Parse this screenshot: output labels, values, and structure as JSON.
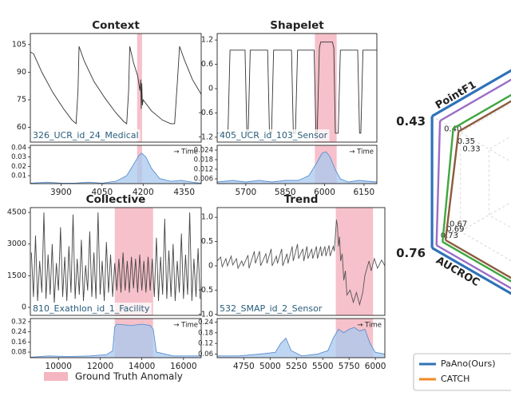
{
  "legend": {
    "label": "Ground Truth Anomaly",
    "color": "#f4b6c1"
  },
  "chart_data": [
    {
      "type": "line",
      "title": "Context",
      "annotation": "326_UCR_id_24_Medical",
      "color": "#333333",
      "x": [
        3788,
        3800,
        3830,
        3870,
        3910,
        3940,
        3955,
        3962,
        3966,
        3985,
        4020,
        4060,
        4100,
        4130,
        4140,
        4147,
        4151,
        4165,
        4180,
        4188,
        4191,
        4193,
        4195,
        4197,
        4200,
        4230,
        4270,
        4300,
        4315,
        4325,
        4333,
        4350,
        4380,
        4412
      ],
      "values": [
        101,
        100,
        90,
        79,
        70,
        64,
        62,
        80,
        104,
        96,
        85,
        76,
        68,
        63,
        62,
        80,
        104,
        95,
        88,
        80,
        86,
        70,
        84,
        72,
        75,
        69,
        64,
        62,
        62,
        85,
        104,
        97,
        86,
        78
      ],
      "xlim": [
        3788,
        4412
      ],
      "ylim": [
        52,
        111
      ],
      "yticks": [
        60,
        75,
        90,
        105
      ],
      "anomaly": [
        4178,
        4196
      ]
    },
    {
      "type": "area",
      "time_label": "→ Time",
      "color": "#a8c8ee",
      "line_color": "#5b8fd0",
      "x": [
        3788,
        3850,
        3900,
        3950,
        4000,
        4050,
        4100,
        4140,
        4165,
        4185,
        4195,
        4210,
        4230,
        4260,
        4300,
        4340,
        4380,
        4412
      ],
      "values": [
        0.002,
        0.003,
        0.002,
        0.002,
        0.003,
        0.002,
        0.004,
        0.01,
        0.022,
        0.032,
        0.034,
        0.03,
        0.018,
        0.007,
        0.004,
        0.005,
        0.003,
        0.002
      ],
      "xlim": [
        3788,
        4412
      ],
      "ylim": [
        0.0015,
        0.0425
      ],
      "yticks": [
        0.01,
        0.02,
        0.03,
        0.04
      ],
      "xticks": [
        3900,
        4050,
        4200,
        4350
      ],
      "anomaly": [
        4178,
        4196
      ]
    },
    {
      "type": "line",
      "title": "Shapelet",
      "annotation": "405_UCR_id_103_Sensor",
      "color": "#333333",
      "x": [
        5591,
        5632,
        5640,
        5697,
        5704,
        5709,
        5717,
        5783,
        5790,
        5798,
        5806,
        5874,
        5881,
        5889,
        5897,
        5960,
        5967,
        5972,
        5980,
        5985,
        6030,
        6035,
        6041,
        6052,
        6060,
        6126,
        6133,
        6138,
        6146,
        6199
      ],
      "values": [
        -1.1,
        -1.1,
        0.95,
        0.95,
        -1.1,
        -1.1,
        0.95,
        0.95,
        -1.1,
        -1.1,
        0.95,
        0.95,
        -1.1,
        -1.1,
        0.95,
        0.95,
        -1.1,
        -1.1,
        1.0,
        1.15,
        1.15,
        1.0,
        -1.1,
        -1.1,
        0.95,
        0.95,
        -1.1,
        -1.1,
        0.95,
        0.95
      ],
      "xlim": [
        5591,
        6199
      ],
      "ylim": [
        -1.32,
        1.36
      ],
      "yticks": [
        -1.2,
        -0.6,
        0,
        0.6,
        1.2
      ],
      "anomaly": [
        5963,
        6046
      ]
    },
    {
      "type": "area",
      "time_label": "→ Time",
      "color": "#a8c8ee",
      "line_color": "#5b8fd0",
      "x": [
        5591,
        5650,
        5700,
        5750,
        5800,
        5850,
        5900,
        5940,
        5970,
        5990,
        6005,
        6020,
        6040,
        6060,
        6090,
        6130,
        6199
      ],
      "values": [
        0.004,
        0.005,
        0.004,
        0.005,
        0.004,
        0.005,
        0.005,
        0.008,
        0.016,
        0.022,
        0.023,
        0.02,
        0.012,
        0.006,
        0.004,
        0.005,
        0.004
      ],
      "xlim": [
        5591,
        6199
      ],
      "ylim": [
        0.003,
        0.027
      ],
      "yticks": [
        0.006,
        0.012,
        0.018,
        0.024
      ],
      "xticks": [
        5700,
        5850,
        6000,
        6150
      ],
      "anomaly": [
        5963,
        6046
      ]
    },
    {
      "type": "line",
      "title": "Collective",
      "annotation": "810_Exathlon_id_1_Facility",
      "color": "#444444",
      "x": [
        8700,
        8800,
        8900,
        9000,
        9100,
        9200,
        9300,
        9400,
        9500,
        9600,
        9700,
        9800,
        9900,
        10000,
        10100,
        10200,
        10300,
        10400,
        10500,
        10600,
        10700,
        10800,
        10900,
        11000,
        11100,
        11200,
        11300,
        11400,
        11500,
        11600,
        11700,
        11800,
        11900,
        12000,
        12100,
        12200,
        12300,
        12400,
        12500,
        12600,
        12700,
        12800,
        12900,
        13000,
        13100,
        13200,
        13300,
        13400,
        13500,
        13600,
        13700,
        13800,
        13900,
        14000,
        14100,
        14200,
        14300,
        14400,
        14500,
        14600,
        14700,
        14800,
        14900,
        15000,
        15100,
        15200,
        15300,
        15400,
        15500,
        15600,
        15700,
        15800,
        15900,
        16000,
        16100,
        16200,
        16300,
        16400,
        16500,
        16600,
        16700,
        16800
      ],
      "values": [
        2600,
        500,
        3400,
        300,
        2200,
        700,
        4500,
        400,
        2500,
        600,
        3000,
        200,
        2100,
        800,
        3800,
        500,
        2400,
        300,
        2900,
        700,
        4400,
        400,
        2300,
        600,
        3200,
        300,
        2000,
        800,
        3600,
        500,
        2600,
        400,
        4500,
        600,
        2200,
        300,
        3100,
        700,
        2500,
        500,
        2100,
        800,
        2300,
        700,
        2600,
        800,
        2200,
        700,
        2400,
        900,
        2300,
        700,
        2500,
        800,
        2200,
        700,
        2400,
        800,
        2300,
        500,
        3300,
        300,
        2400,
        600,
        4200,
        400,
        2700,
        500,
        3000,
        300,
        2200,
        700,
        3500,
        400,
        2500,
        600,
        4500,
        300,
        2300,
        500,
        2800,
        400
      ],
      "xlim": [
        8650,
        16850
      ],
      "ylim": [
        -380,
        4730
      ],
      "yticks": [
        0,
        1500,
        3000,
        4500
      ],
      "anomaly": [
        12700,
        14540
      ]
    },
    {
      "type": "area",
      "time_label": "→ Time",
      "color": "#a8c8ee",
      "line_color": "#5b8fd0",
      "x": [
        8650,
        9500,
        10500,
        11500,
        12300,
        12600,
        12700,
        12800,
        13500,
        14000,
        14400,
        14550,
        14700,
        15500,
        16850
      ],
      "values": [
        0.04,
        0.05,
        0.045,
        0.05,
        0.06,
        0.09,
        0.28,
        0.3,
        0.29,
        0.3,
        0.29,
        0.26,
        0.08,
        0.05,
        0.05
      ],
      "xlim": [
        8650,
        16850
      ],
      "ylim": [
        0.036,
        0.345
      ],
      "yticks": [
        0.08,
        0.16,
        0.24,
        0.32
      ],
      "xticks": [
        10000,
        12000,
        14000,
        16000
      ],
      "anomaly": [
        12700,
        14540
      ]
    },
    {
      "type": "line",
      "title": "Trend",
      "annotation": "532_SMAP_id_2_Sensor",
      "color": "#555555",
      "x": [
        4497,
        4530,
        4545,
        4580,
        4595,
        4630,
        4645,
        4680,
        4695,
        4730,
        4745,
        4790,
        4800,
        4850,
        4860,
        4900,
        4910,
        4960,
        4970,
        5010,
        5020,
        5060,
        5070,
        5110,
        5120,
        5160,
        5170,
        5210,
        5220,
        5260,
        5270,
        5310,
        5320,
        5350,
        5360,
        5395,
        5405,
        5440,
        5450,
        5480,
        5490,
        5520,
        5530,
        5560,
        5570,
        5600,
        5610,
        5630,
        5640,
        5650,
        5660,
        5670,
        5685,
        5700,
        5715,
        5730,
        5760,
        5790,
        5820,
        5850,
        5880,
        5900,
        5940,
        5960,
        5990,
        6020,
        6060,
        6090
      ],
      "values": [
        0.1,
        0.18,
        -0.02,
        0.15,
        0,
        0.2,
        0.02,
        0.15,
        -0.05,
        0.1,
        0,
        0.22,
        -0.05,
        0.3,
        0.05,
        0.3,
        0,
        0.25,
        0.05,
        0.35,
        0,
        0.2,
        0.05,
        0.35,
        0,
        0.25,
        0.05,
        0.4,
        0.1,
        0.45,
        0.15,
        0.35,
        0.1,
        0.4,
        0.15,
        0.35,
        0.15,
        0.4,
        0.15,
        0.4,
        0.2,
        0.4,
        0.2,
        0.42,
        0.2,
        0.4,
        0.3,
        0.95,
        0.8,
        0.4,
        0.6,
        0.1,
        0.25,
        -0.3,
        -0.1,
        -0.6,
        -0.5,
        -0.75,
        -0.55,
        -0.8,
        -0.55,
        -0.2,
        0.1,
        -0.1,
        0.15,
        -0.05,
        0.12,
        0
      ],
      "xlim": [
        4497,
        6090
      ],
      "ylim": [
        -1.02,
        1.2
      ],
      "yticks": [
        {
          "value": -1,
          "label": "-1.0"
        },
        -0.5,
        0,
        0.5,
        {
          "value": 1,
          "label": "1.0"
        }
      ],
      "anomaly": [
        5624,
        5978
      ]
    },
    {
      "type": "area",
      "time_label": "→ Time",
      "color": "#a8c8ee",
      "line_color": "#5b8fd0",
      "x": [
        4497,
        4700,
        4900,
        5050,
        5100,
        5150,
        5200,
        5300,
        5450,
        5550,
        5600,
        5650,
        5700,
        5750,
        5800,
        5850,
        5900,
        5950,
        5980,
        6000,
        6090
      ],
      "values": [
        0.05,
        0.05,
        0.06,
        0.07,
        0.12,
        0.15,
        0.08,
        0.05,
        0.06,
        0.08,
        0.15,
        0.2,
        0.18,
        0.2,
        0.21,
        0.19,
        0.2,
        0.12,
        0.09,
        0.07,
        0.06
      ],
      "xlim": [
        4497,
        6090
      ],
      "ylim": [
        0.04,
        0.26
      ],
      "yticks": [
        0.06,
        0.12,
        0.18,
        0.24
      ],
      "xticks": [
        4750,
        5000,
        5250,
        5500,
        5750,
        6000
      ],
      "anomaly": [
        5624,
        5978
      ]
    },
    {
      "type": "radar",
      "axes": [
        "PointF1",
        "AUCROC"
      ],
      "series": [
        {
          "color": "#2f72b8",
          "values": [
            0.43,
            0.76
          ]
        },
        {
          "color": "#9b6cc4",
          "values": [
            0.4,
            0.73
          ],
          "value_labels": [
            "0.40",
            "0.73"
          ]
        },
        {
          "color": "#3fa63f",
          "values": [
            0.35,
            0.69
          ]
        },
        {
          "color": "#8c5a3c",
          "values": [
            0.33,
            0.67
          ]
        }
      ],
      "legend": [
        {
          "name": "PaAno(Ours)",
          "color": "#2f72b8"
        },
        {
          "name": "CATCH",
          "color": "#f08a24"
        }
      ]
    }
  ]
}
